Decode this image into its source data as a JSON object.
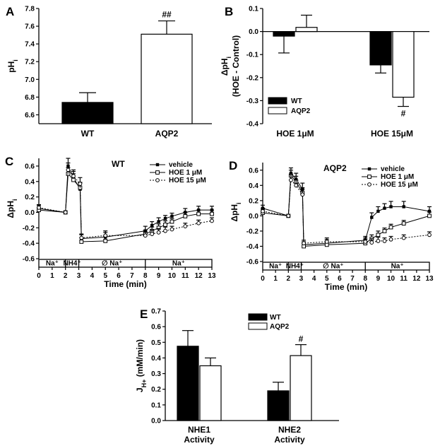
{
  "chart_data": [
    {
      "panel": "A",
      "type": "bar",
      "ylabel": "pHi",
      "ylim": [
        6.5,
        7.8
      ],
      "yticks": [
        "6.6",
        "6.8",
        "7.0",
        "7.2",
        "7.4",
        "7.6",
        "7.8"
      ],
      "categories": [
        "WT",
        "AQP2"
      ],
      "values": [
        6.74,
        7.51
      ],
      "errors": [
        0.11,
        0.15
      ],
      "fills": [
        "#000000",
        "#ffffff"
      ],
      "annotations": [
        "",
        "##"
      ]
    },
    {
      "panel": "B",
      "type": "bar",
      "ylabel_line1": "ΔpHi",
      "ylabel_line2": "(HOE - Control)",
      "ylim": [
        -0.4,
        0.1
      ],
      "yticks": [
        "-0.4",
        "-0.3",
        "-0.2",
        "-0.1",
        "0.0",
        "0.1"
      ],
      "categories": [
        "HOE 1μM",
        "HOE 15μM"
      ],
      "series": [
        {
          "name": "WT",
          "values": [
            -0.02,
            -0.145
          ],
          "errors": [
            0.073,
            0.035
          ],
          "fill": "#000000"
        },
        {
          "name": "AQP2",
          "values": [
            0.018,
            -0.285
          ],
          "errors": [
            0.053,
            0.04
          ],
          "fill": "#ffffff"
        }
      ],
      "annotations": [
        "",
        "#"
      ]
    },
    {
      "panel": "C",
      "type": "line",
      "title": "WT",
      "xlabel": "Time (min)",
      "ylabel": "ΔpHi",
      "xlim": [
        0,
        13
      ],
      "ylim": [
        -0.6,
        0.7
      ],
      "xticks": [
        "0",
        "1",
        "2",
        "3",
        "4",
        "5",
        "6",
        "7",
        "8",
        "9",
        "10",
        "11",
        "12",
        "13"
      ],
      "yticks": [
        "-0.6",
        "-0.4",
        "-0.2",
        "0.0",
        "0.2",
        "0.4",
        "0.6"
      ],
      "bar_segments": [
        "Na⁺",
        "NH4⁺",
        "∅ Na⁺",
        "Na⁺"
      ],
      "series": [
        {
          "name": "vehicle",
          "marker": "filled-square",
          "dash": "solid",
          "x": [
            0,
            2,
            2.2,
            2.6,
            3.1,
            3.2,
            5,
            8,
            8.5,
            9,
            9.5,
            10,
            11,
            12,
            13
          ],
          "y": [
            0.05,
            0,
            0.6,
            0.45,
            0.3,
            -0.34,
            -0.32,
            -0.24,
            -0.17,
            -0.12,
            -0.08,
            -0.05,
            0.0,
            0.03,
            0.03
          ],
          "err": [
            0.04,
            0.02,
            0.1,
            0.08,
            0.08,
            0.05,
            0.06,
            0.06,
            0.05,
            0.05,
            0.04,
            0.04,
            0.05,
            0.05,
            0.05
          ]
        },
        {
          "name": "HOE 1 μM",
          "marker": "open-square",
          "dash": "solid",
          "x": [
            0,
            2,
            2.2,
            2.6,
            3.1,
            3.2,
            5,
            8,
            8.5,
            9,
            9.5,
            10,
            11,
            12,
            13
          ],
          "y": [
            0.03,
            0,
            0.5,
            0.42,
            0.32,
            -0.38,
            -0.37,
            -0.28,
            -0.24,
            -0.2,
            -0.16,
            -0.12,
            -0.05,
            -0.02,
            -0.02
          ],
          "err": [
            0.04,
            0.02,
            0.08,
            0.08,
            0.07,
            0.05,
            0.06,
            0.05,
            0.05,
            0.05,
            0.05,
            0.04,
            0.05,
            0.05,
            0.05
          ]
        },
        {
          "name": "HOE 15 μM",
          "marker": "open-circle",
          "dash": "dotted",
          "x": [
            0,
            2,
            2.2,
            2.6,
            3.1,
            3.2,
            5,
            8,
            8.5,
            9,
            9.5,
            10,
            11,
            12,
            13
          ],
          "y": [
            0.06,
            0,
            0.55,
            0.47,
            0.37,
            -0.33,
            -0.3,
            -0.3,
            -0.28,
            -0.26,
            -0.24,
            -0.22,
            -0.18,
            -0.14,
            -0.11
          ],
          "err": [
            0.04,
            0.02,
            0.09,
            0.08,
            0.08,
            0.05,
            0.06,
            0.05,
            0.05,
            0.05,
            0.05,
            0.04,
            0.04,
            0.04,
            0.04
          ]
        }
      ]
    },
    {
      "panel": "D",
      "type": "line",
      "title": "AQP2",
      "xlabel": "Time (min)",
      "ylabel": "ΔpHi",
      "xlim": [
        0,
        13
      ],
      "ylim": [
        -0.6,
        0.7
      ],
      "xticks": [
        "0",
        "1",
        "2",
        "3",
        "4",
        "5",
        "6",
        "7",
        "8",
        "9",
        "10",
        "11",
        "12",
        "13"
      ],
      "yticks": [
        "-0.6",
        "-0.4",
        "-0.2",
        "0.0",
        "0.2",
        "0.4",
        "0.6"
      ],
      "bar_segments": [
        "Na⁺",
        "NH4⁺",
        "∅ Na⁺",
        "Na⁺"
      ],
      "series": [
        {
          "name": "vehicle",
          "marker": "filled-square",
          "dash": "solid",
          "x": [
            0,
            2,
            2.2,
            2.6,
            3.1,
            3.2,
            5,
            8,
            8.5,
            9,
            9.5,
            10,
            11,
            13
          ],
          "y": [
            0.1,
            0,
            0.56,
            0.48,
            0.35,
            -0.38,
            -0.36,
            -0.32,
            -0.02,
            0.06,
            0.1,
            0.12,
            0.12,
            0.06
          ],
          "err": [
            0.04,
            0.02,
            0.07,
            0.08,
            0.08,
            0.04,
            0.05,
            0.05,
            0.06,
            0.06,
            0.06,
            0.07,
            0.07,
            0.06
          ]
        },
        {
          "name": "HOE 1 μM",
          "marker": "open-square",
          "dash": "solid",
          "x": [
            0,
            2,
            2.2,
            2.6,
            3.1,
            3.2,
            5,
            8,
            8.5,
            9,
            9.5,
            10,
            11,
            13
          ],
          "y": [
            0.04,
            0,
            0.53,
            0.45,
            0.3,
            -0.4,
            -0.38,
            -0.36,
            -0.3,
            -0.25,
            -0.2,
            -0.15,
            -0.1,
            0.0
          ],
          "err": [
            0.04,
            0.02,
            0.07,
            0.07,
            0.07,
            0.04,
            0.05,
            0.05,
            0.05,
            0.05,
            0.04,
            0.04,
            0.04,
            0.05
          ]
        },
        {
          "name": "HOE 15 μM",
          "marker": "open-circle",
          "dash": "dotted",
          "x": [
            0,
            2,
            2.2,
            2.6,
            3.1,
            3.2,
            5,
            8,
            8.5,
            9,
            9.5,
            10,
            11,
            13
          ],
          "y": [
            0.06,
            0,
            0.47,
            0.4,
            0.28,
            -0.36,
            -0.34,
            -0.34,
            -0.35,
            -0.33,
            -0.33,
            -0.31,
            -0.29,
            -0.25
          ],
          "err": [
            0.04,
            0.02,
            0.07,
            0.07,
            0.07,
            0.04,
            0.05,
            0.05,
            0.05,
            0.05,
            0.04,
            0.04,
            0.04,
            0.04
          ]
        }
      ]
    },
    {
      "panel": "E",
      "type": "bar",
      "ylabel": "JH+ (mM/min)",
      "ylim": [
        0,
        0.7
      ],
      "yticks": [
        "0.0",
        "0.1",
        "0.2",
        "0.3",
        "0.4",
        "0.5",
        "0.6",
        "0.7"
      ],
      "categories": [
        "NHE1 Activity",
        "NHE2 Activity"
      ],
      "series": [
        {
          "name": "WT",
          "values": [
            0.475,
            0.19
          ],
          "errors": [
            0.1,
            0.055
          ],
          "fill": "#000000"
        },
        {
          "name": "AQP2",
          "values": [
            0.35,
            0.415
          ],
          "errors": [
            0.05,
            0.07
          ],
          "fill": "#ffffff"
        }
      ],
      "annotations": [
        "",
        "#"
      ]
    }
  ]
}
